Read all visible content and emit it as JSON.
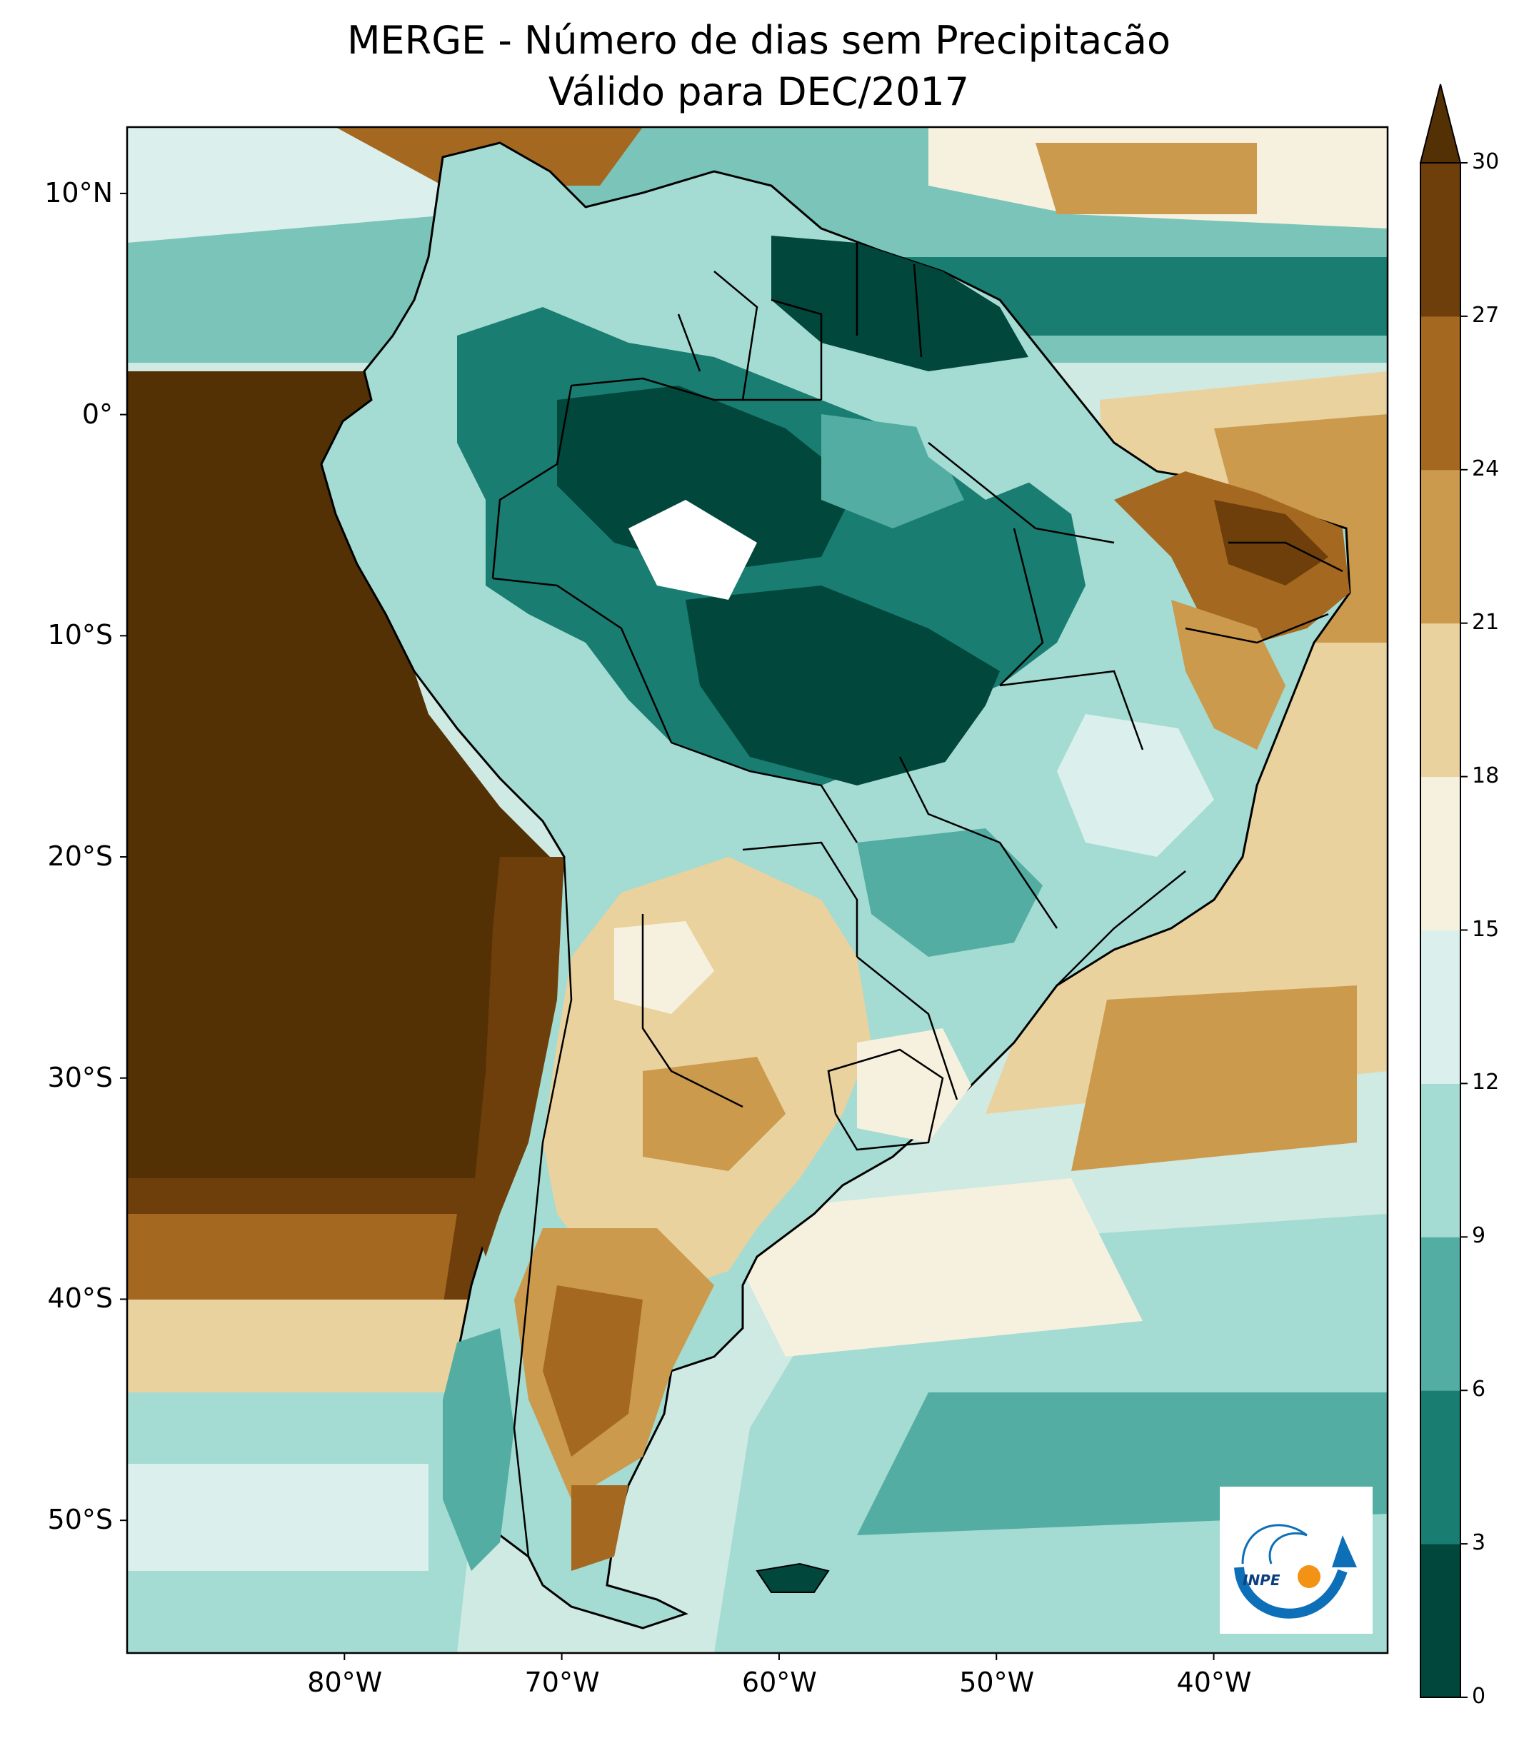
{
  "title_line1": "MERGE - Número de dias sem Precipitacão",
  "title_line2": "Válido para DEC/2017",
  "longitude_ticks": [
    {
      "value": -80,
      "label": "80°W"
    },
    {
      "value": -70,
      "label": "70°W"
    },
    {
      "value": -60,
      "label": "60°W"
    },
    {
      "value": -50,
      "label": "50°W"
    },
    {
      "value": -40,
      "label": "40°W"
    }
  ],
  "latitude_ticks": [
    {
      "value": 10,
      "label": "10°N"
    },
    {
      "value": 0,
      "label": "0°"
    },
    {
      "value": -10,
      "label": "10°S"
    },
    {
      "value": -20,
      "label": "20°S"
    },
    {
      "value": -30,
      "label": "30°S"
    },
    {
      "value": -40,
      "label": "40°S"
    },
    {
      "value": -50,
      "label": "50°S"
    }
  ],
  "extent": {
    "lon_min": -90,
    "lon_max": -32,
    "lat_min": -56,
    "lat_max": 13
  },
  "colorbar": {
    "levels": [
      "0",
      "3",
      "6",
      "9",
      "12",
      "15",
      "18",
      "21",
      "24",
      "27",
      "30"
    ],
    "colors": [
      "#01473c",
      "#197d72",
      "#54ada3",
      "#a4dbd2",
      "#dbf0ed",
      "#f6f1df",
      "#ead29e",
      "#cb9a4d",
      "#a46820",
      "#6e3f0b"
    ],
    "extend_color": "#543005",
    "extend": "max"
  },
  "logo": {
    "text": "INPE"
  }
}
